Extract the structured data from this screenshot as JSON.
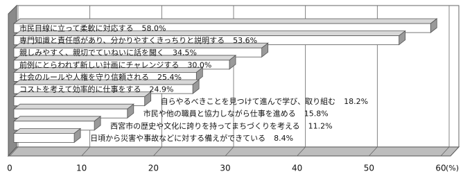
{
  "chart_data": {
    "type": "bar3d_horizontal",
    "categories": [
      "市民目線に立って柔軟に対応する",
      "専門知識と責任感があり、分かりやすくきっちりと説明する",
      "親しみやすく、親切でていねいに話を聞く",
      "前例にとらわれず新しい計画にチャレンジする",
      "社会のルールや人権を守り信頼される",
      "コストを考えて効率的に仕事をする",
      "自らやるべきことを見つけて進んで学び、取り組む",
      "市民や他の職員と協力しながら仕事を進める",
      "西宮市の歴史や文化に誇りを持ってまちづくりを考える",
      "日頃から災害や事故などに対する備えができている"
    ],
    "values": [
      58.0,
      53.6,
      34.5,
      30.0,
      25.4,
      24.9,
      18.2,
      15.8,
      11.2,
      8.4
    ],
    "value_labels": [
      "58.0%",
      "53.6%",
      "34.5%",
      "30.0%",
      "25.4%",
      "24.9%",
      "18.2%",
      "15.8%",
      "11.2%",
      "8.4%"
    ],
    "color": "#ffffff",
    "xlim": [
      0,
      60
    ],
    "xticks": [
      0,
      10,
      20,
      30,
      40,
      50,
      60
    ],
    "xlabel": "(%)",
    "grid": true
  }
}
